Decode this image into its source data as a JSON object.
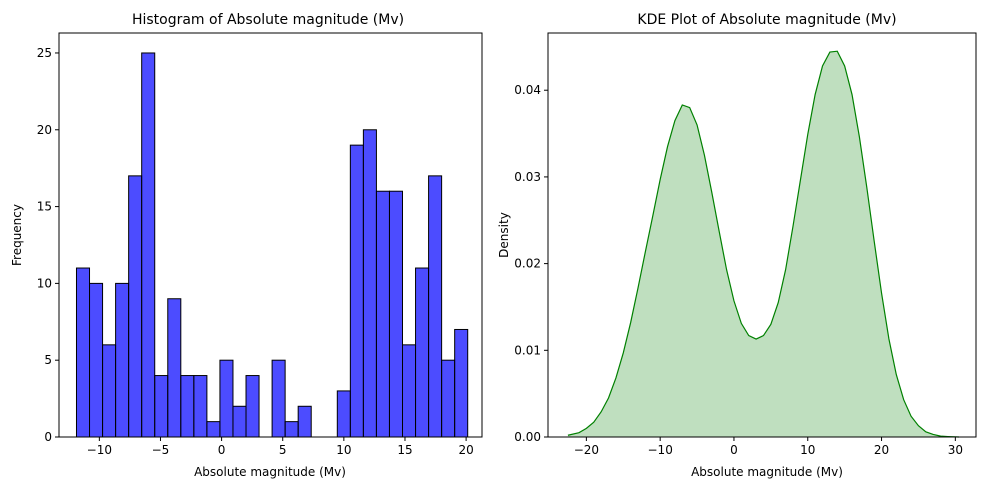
{
  "chart_data": [
    {
      "type": "bar",
      "title": "Histogram of Absolute magnitude (Mv)",
      "xlabel": "Absolute magnitude (Mv)",
      "ylabel": "Frequency",
      "xlim": [
        -13.3,
        21.3
      ],
      "ylim": [
        0,
        26.3
      ],
      "x_ticks": [
        -10,
        -5,
        0,
        5,
        10,
        15,
        20
      ],
      "x_tick_labels": [
        "−10",
        "−5",
        "0",
        "5",
        "10",
        "15",
        "20"
      ],
      "y_ticks": [
        0,
        5,
        10,
        15,
        20,
        25
      ],
      "y_tick_labels": [
        "0",
        "5",
        "10",
        "15",
        "20",
        "25"
      ],
      "bin_start": -11.87,
      "bin_width": 1.0667,
      "values": [
        11,
        10,
        6,
        10,
        17,
        25,
        4,
        9,
        4,
        4,
        1,
        5,
        2,
        4,
        0,
        5,
        1,
        2,
        0,
        0,
        3,
        19,
        20,
        16,
        16,
        6,
        11,
        17,
        5,
        7
      ],
      "bar_color": "#0000ff",
      "bar_alpha": 0.7,
      "edge_color": "#000000",
      "grid": false
    },
    {
      "type": "area",
      "title": "KDE Plot of Absolute magnitude (Mv)",
      "xlabel": "Absolute magnitude (Mv)",
      "ylabel": "Density",
      "xlim": [
        -25.2,
        32.8
      ],
      "ylim": [
        0,
        0.0466
      ],
      "x_ticks": [
        -20,
        -10,
        0,
        10,
        20,
        30
      ],
      "x_tick_labels": [
        "−20",
        "−10",
        "0",
        "10",
        "20",
        "30"
      ],
      "y_ticks": [
        0,
        0.01,
        0.02,
        0.03,
        0.04
      ],
      "y_tick_labels": [
        "0.00",
        "0.01",
        "0.02",
        "0.03",
        "0.04"
      ],
      "x": [
        -22.5,
        -21,
        -20,
        -19,
        -18,
        -17,
        -16,
        -15,
        -14,
        -13,
        -12,
        -11,
        -10,
        -9,
        -8,
        -7,
        -6,
        -5,
        -4,
        -3,
        -2,
        -1,
        0,
        1,
        2,
        3,
        4,
        5,
        6,
        7,
        8,
        9,
        10,
        11,
        12,
        13,
        14,
        15,
        16,
        17,
        18,
        19,
        20,
        21,
        22,
        23,
        24,
        25,
        26,
        27,
        28,
        29,
        30.5
      ],
      "y": [
        0.0002,
        0.0005,
        0.001,
        0.0017,
        0.0029,
        0.0045,
        0.0068,
        0.0097,
        0.0132,
        0.0172,
        0.0214,
        0.0255,
        0.0297,
        0.0335,
        0.0365,
        0.0383,
        0.038,
        0.036,
        0.0325,
        0.0282,
        0.0237,
        0.0193,
        0.0157,
        0.0131,
        0.0117,
        0.0113,
        0.0117,
        0.013,
        0.0155,
        0.0193,
        0.0243,
        0.0296,
        0.0349,
        0.0395,
        0.0428,
        0.0444,
        0.0445,
        0.0428,
        0.0395,
        0.0346,
        0.0288,
        0.0226,
        0.0166,
        0.0113,
        0.0072,
        0.0043,
        0.0024,
        0.0013,
        0.0006,
        0.0003,
        0.0001,
        5e-05,
        0.0
      ],
      "line_color": "#008000",
      "fill_color": "#008000",
      "fill_alpha": 0.25,
      "grid": false
    }
  ]
}
